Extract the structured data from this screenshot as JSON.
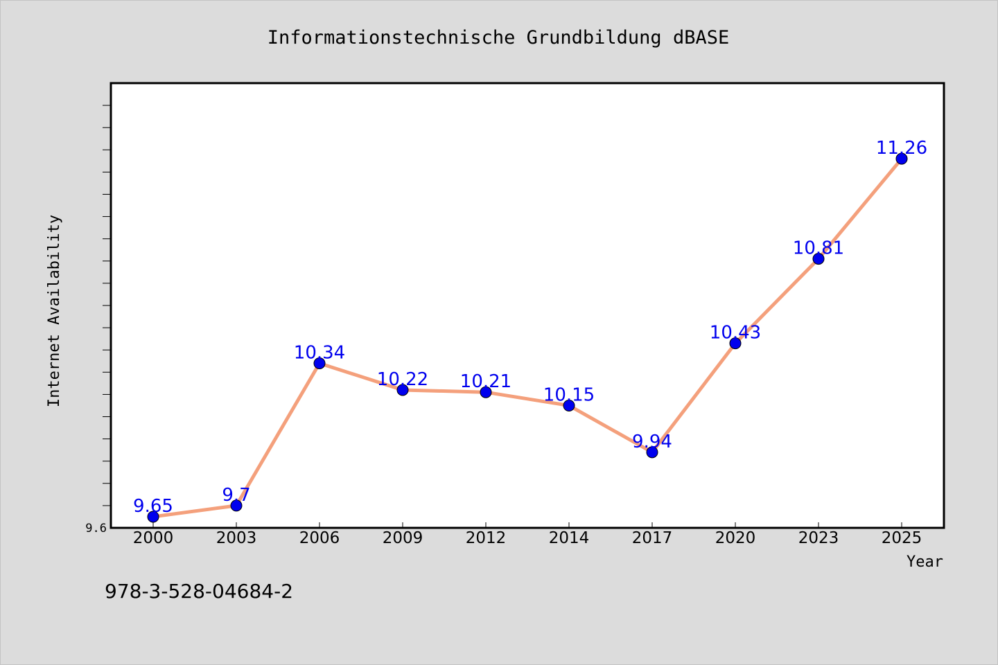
{
  "chart_data": {
    "type": "line",
    "title": "Informationstechnische Grundbildung dBASE",
    "xlabel": "Year",
    "ylabel": "Internet Availability",
    "categories": [
      "2000",
      "2003",
      "2006",
      "2009",
      "2012",
      "2014",
      "2017",
      "2020",
      "2023",
      "2025"
    ],
    "series": [
      {
        "values": [
          9.65,
          9.7,
          10.34,
          10.22,
          10.21,
          10.15,
          9.94,
          10.43,
          10.81,
          11.26
        ]
      }
    ],
    "data_labels": [
      "9.65",
      "9.7",
      "10.34",
      "10.22",
      "10.21",
      "10.15",
      "9.94",
      "10.43",
      "10.81",
      "11.26"
    ],
    "ylim": [
      9.6,
      11.6
    ],
    "yticks_labeled": [
      {
        "value": 9.6,
        "label": "9.6"
      }
    ],
    "grid": false,
    "colors": {
      "line": "#f4a07c",
      "marker": "#0000ee",
      "data_label": "#0000ee",
      "background": "#dcdcdc",
      "plot_background": "#ffffff"
    }
  },
  "footer": {
    "isbn": "978-3-528-04684-2"
  }
}
